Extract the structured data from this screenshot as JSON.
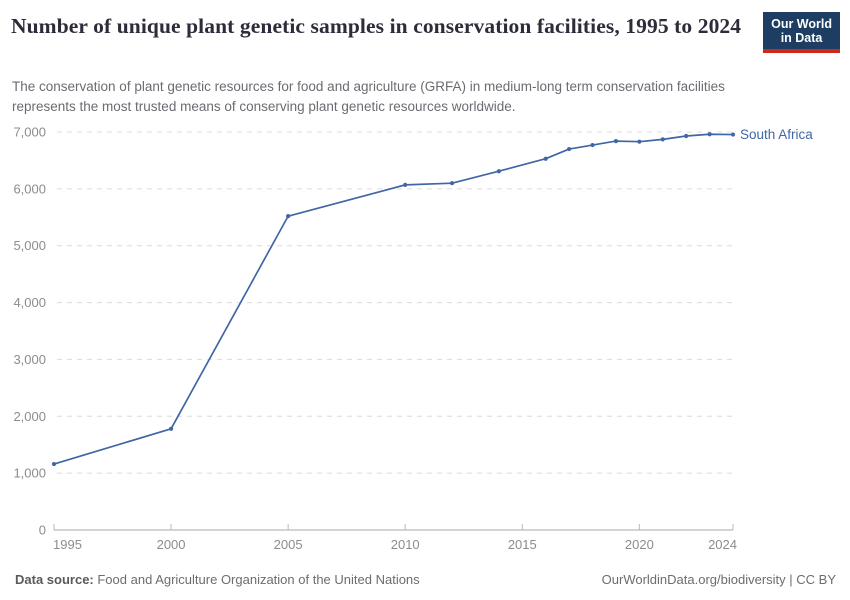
{
  "header": {
    "title": "Number of unique plant genetic samples in conservation facilities, 1995 to 2024",
    "subtitle": "The conservation of plant genetic resources for food and agriculture (GRFA) in medium-long term conservation facilities represents the most trusted means of conserving plant genetic resources worldwide.",
    "logo": {
      "line1": "Our World",
      "line2": "in Data",
      "background_color": "#1d3d63",
      "accent_color": "#cc2a1a"
    }
  },
  "chart_data": {
    "type": "line",
    "title": "Number of unique plant genetic samples in conservation facilities, 1995 to 2024",
    "xlabel": "",
    "ylabel": "",
    "xlim": [
      1995,
      2024
    ],
    "ylim": [
      0,
      7000
    ],
    "grid": "horizontal-dashed",
    "legend_position": "end-of-line-label",
    "x_ticks": [
      1995,
      2000,
      2005,
      2010,
      2015,
      2020,
      2024
    ],
    "y_ticks": [
      0,
      1000,
      2000,
      3000,
      4000,
      5000,
      6000,
      7000
    ],
    "y_tick_labels": [
      "0",
      "1,000",
      "2,000",
      "3,000",
      "4,000",
      "5,000",
      "6,000",
      "7,000"
    ],
    "series": [
      {
        "name": "South Africa",
        "color": "#4166a5",
        "x": [
          1995,
          2000,
          2005,
          2010,
          2012,
          2014,
          2016,
          2017,
          2018,
          2019,
          2020,
          2021,
          2022,
          2023,
          2024
        ],
        "values": [
          1160,
          1780,
          5520,
          6070,
          6100,
          6310,
          6530,
          6700,
          6770,
          6840,
          6830,
          6870,
          6930,
          6960,
          6955
        ]
      }
    ],
    "colors": {
      "gridline": "#dcdcdc",
      "axis_line": "#a9a9a9",
      "tick_label": "#8c8c8c"
    }
  },
  "footer": {
    "source_label": "Data source:",
    "source_text": " Food and Agriculture Organization of the United Nations",
    "citation": "OurWorldinData.org/biodiversity | CC BY"
  }
}
